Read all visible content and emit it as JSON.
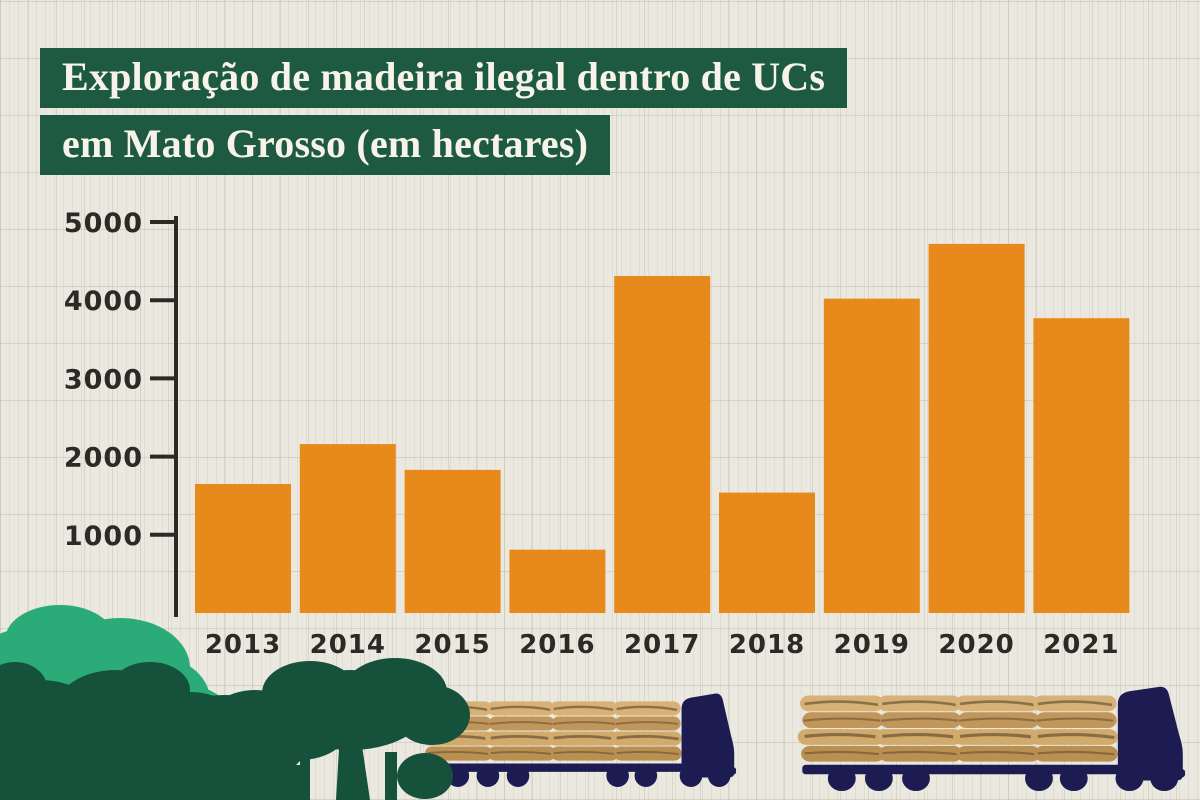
{
  "title": {
    "line1": "Exploração de madeira ilegal dentro de UCs",
    "line2": "em Mato Grosso (em hectares)"
  },
  "chart_data": {
    "type": "bar",
    "categories": [
      "2013",
      "2014",
      "2015",
      "2016",
      "2017",
      "2018",
      "2019",
      "2020",
      "2021"
    ],
    "values": [
      1650,
      2160,
      1830,
      810,
      4310,
      1540,
      4020,
      4720,
      3770
    ],
    "title": "Exploração de madeira ilegal dentro de UCs em Mato Grosso (em hectares)",
    "xlabel": "",
    "ylabel": "",
    "ylim": [
      0,
      5000
    ],
    "yticks": [
      1000,
      2000,
      3000,
      4000,
      5000
    ],
    "grid": false,
    "legend": "none",
    "bar_color": "#e78a1b"
  },
  "colors": {
    "background": "#eae8df",
    "bar": "#e78a1b",
    "title_bg": "#1d5a41",
    "title_text": "#f7f3e8",
    "axis": "#2d2a26",
    "tree_light": "#2aab77",
    "tree_dark": "#16513b",
    "truck": "#1c1c52",
    "log_light": "#d8b176",
    "log_dark": "#b98f52"
  },
  "icons": {
    "forest": "forest-trees-icon",
    "truck": "logging-truck-icon"
  }
}
